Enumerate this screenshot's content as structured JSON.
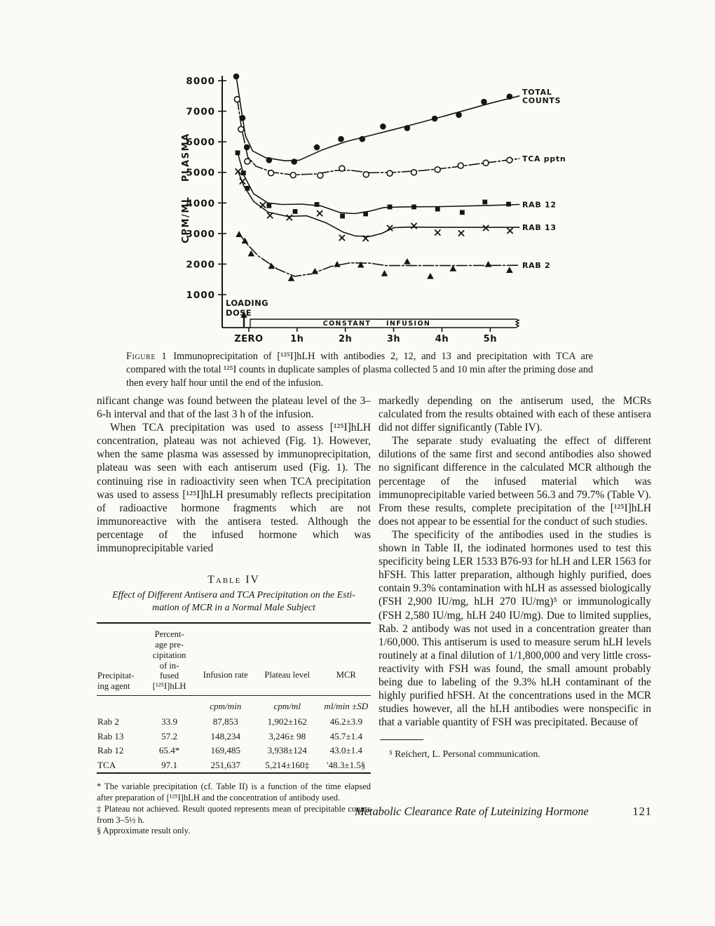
{
  "figure": {
    "caption_label": "Figure 1",
    "caption_text": "Immunoprecipitation of [¹²⁵I]hLH with antibodies 2, 12, and 13 and precipitation with TCA are compared with the total ¹²⁵I counts in duplicate samples of plasma collected 5 and 10 min after the priming dose and then every half hour until the end of the infusion."
  },
  "chart_data": {
    "type": "line",
    "ylabel": "CPM/ML PLASMA",
    "ylim": [
      1000,
      8000
    ],
    "xlim": [
      -0.55,
      5.75
    ],
    "yticks": [
      1000,
      2000,
      3000,
      4000,
      5000,
      6000,
      7000,
      8000
    ],
    "xticks": [
      {
        "t": 0,
        "label": "ZERO"
      },
      {
        "t": 1,
        "label": "1h"
      },
      {
        "t": 2,
        "label": "2h"
      },
      {
        "t": 3,
        "label": "3h"
      },
      {
        "t": 4,
        "label": "4h"
      },
      {
        "t": 5,
        "label": "5h"
      }
    ],
    "loading_dose": {
      "label_line1": "LOADING",
      "label_line2": "DOSE",
      "t": -0.1
    },
    "infusion_bar": {
      "label": "CONSTANT INFUSION",
      "t_start": 0.03,
      "t_end": 5.62
    },
    "series": [
      {
        "name": "total-counts",
        "label": "TOTAL\nCOUNTS",
        "marker": "dot",
        "line_style": "solid",
        "points": [
          [
            -0.26,
            8140
          ],
          [
            -0.13,
            6780
          ],
          [
            -0.04,
            5820
          ],
          [
            0.42,
            5400
          ],
          [
            0.94,
            5350
          ],
          [
            1.41,
            5820
          ],
          [
            1.91,
            6090
          ],
          [
            2.35,
            6090
          ],
          [
            2.78,
            6500
          ],
          [
            3.28,
            6450
          ],
          [
            3.85,
            6760
          ],
          [
            4.35,
            6880
          ],
          [
            4.87,
            7310
          ],
          [
            5.4,
            7480
          ]
        ],
        "curve": [
          [
            -0.26,
            8140
          ],
          [
            -0.17,
            7200
          ],
          [
            -0.07,
            6200
          ],
          [
            0.08,
            5700
          ],
          [
            0.35,
            5480
          ],
          [
            0.75,
            5380
          ],
          [
            1.05,
            5400
          ],
          [
            1.5,
            5720
          ],
          [
            2.0,
            6000
          ],
          [
            2.5,
            6200
          ],
          [
            3.0,
            6400
          ],
          [
            3.5,
            6610
          ],
          [
            4.0,
            6820
          ],
          [
            4.5,
            7040
          ],
          [
            5.0,
            7260
          ],
          [
            5.6,
            7500
          ]
        ]
      },
      {
        "name": "tca-pptn",
        "label": "TCA pptn",
        "marker": "circle",
        "line_style": "dashdot",
        "points": [
          [
            -0.24,
            7390
          ],
          [
            -0.16,
            6410
          ],
          [
            -0.03,
            5360
          ],
          [
            0.46,
            4980
          ],
          [
            0.92,
            4910
          ],
          [
            1.48,
            4900
          ],
          [
            1.93,
            5130
          ],
          [
            2.43,
            4930
          ],
          [
            2.92,
            4970
          ],
          [
            3.42,
            5000
          ],
          [
            3.91,
            5090
          ],
          [
            4.39,
            5220
          ],
          [
            4.91,
            5310
          ],
          [
            5.4,
            5400
          ]
        ],
        "curve": [
          [
            -0.24,
            7390
          ],
          [
            -0.15,
            6450
          ],
          [
            -0.02,
            5500
          ],
          [
            0.15,
            5200
          ],
          [
            0.5,
            5000
          ],
          [
            0.9,
            4920
          ],
          [
            1.4,
            4950
          ],
          [
            1.8,
            5060
          ],
          [
            2.1,
            5070
          ],
          [
            2.5,
            4990
          ],
          [
            3.0,
            5000
          ],
          [
            3.6,
            5060
          ],
          [
            4.2,
            5160
          ],
          [
            4.8,
            5290
          ],
          [
            5.6,
            5450
          ]
        ]
      },
      {
        "name": "rab-12",
        "label": "RAB 12",
        "marker": "square",
        "line_style": "solid",
        "points": [
          [
            -0.23,
            5640
          ],
          [
            -0.11,
            4980
          ],
          [
            -0.03,
            4480
          ],
          [
            0.42,
            3910
          ],
          [
            0.96,
            3720
          ],
          [
            1.41,
            3950
          ],
          [
            1.94,
            3570
          ],
          [
            2.42,
            3640
          ],
          [
            2.92,
            3870
          ],
          [
            3.42,
            3870
          ],
          [
            3.91,
            3800
          ],
          [
            4.42,
            3690
          ],
          [
            4.89,
            4030
          ],
          [
            5.38,
            3960
          ]
        ],
        "curve": [
          [
            -0.23,
            5640
          ],
          [
            -0.1,
            4900
          ],
          [
            0.1,
            4300
          ],
          [
            0.4,
            4000
          ],
          [
            0.7,
            3950
          ],
          [
            1.1,
            3960
          ],
          [
            1.5,
            3900
          ],
          [
            1.9,
            3680
          ],
          [
            2.2,
            3650
          ],
          [
            2.5,
            3730
          ],
          [
            2.8,
            3850
          ],
          [
            3.2,
            3870
          ],
          [
            4.0,
            3880
          ],
          [
            5.0,
            3920
          ],
          [
            5.6,
            3950
          ]
        ]
      },
      {
        "name": "rab-13",
        "label": "RAB 13",
        "marker": "x",
        "line_style": "solid",
        "points": [
          [
            -0.22,
            5030
          ],
          [
            -0.13,
            4710
          ],
          [
            0.29,
            3930
          ],
          [
            0.44,
            3590
          ],
          [
            0.84,
            3520
          ],
          [
            1.47,
            3660
          ],
          [
            1.93,
            2860
          ],
          [
            2.42,
            2840
          ],
          [
            2.92,
            3180
          ],
          [
            3.42,
            3250
          ],
          [
            3.91,
            3030
          ],
          [
            4.4,
            3010
          ],
          [
            4.91,
            3180
          ],
          [
            5.41,
            3090
          ]
        ],
        "curve": [
          [
            -0.22,
            5030
          ],
          [
            -0.1,
            4550
          ],
          [
            0.1,
            4050
          ],
          [
            0.4,
            3700
          ],
          [
            0.8,
            3560
          ],
          [
            1.2,
            3580
          ],
          [
            1.6,
            3350
          ],
          [
            1.95,
            3050
          ],
          [
            2.2,
            2920
          ],
          [
            2.5,
            2900
          ],
          [
            2.75,
            3000
          ],
          [
            3.0,
            3190
          ],
          [
            3.3,
            3210
          ],
          [
            4.0,
            3200
          ],
          [
            5.0,
            3200
          ],
          [
            5.6,
            3200
          ]
        ]
      },
      {
        "name": "rab-2",
        "label": "RAB 2",
        "marker": "triangle",
        "line_style": "dashdot",
        "points": [
          [
            -0.2,
            2970
          ],
          [
            -0.08,
            2760
          ],
          [
            0.05,
            2340
          ],
          [
            0.47,
            1930
          ],
          [
            0.88,
            1530
          ],
          [
            1.37,
            1760
          ],
          [
            1.83,
            1990
          ],
          [
            2.32,
            1970
          ],
          [
            2.81,
            1690
          ],
          [
            3.28,
            2080
          ],
          [
            3.76,
            1600
          ],
          [
            4.23,
            1850
          ],
          [
            4.96,
            1990
          ],
          [
            5.4,
            1800
          ]
        ],
        "curve": [
          [
            -0.2,
            3000
          ],
          [
            -0.05,
            2680
          ],
          [
            0.2,
            2260
          ],
          [
            0.6,
            1830
          ],
          [
            0.95,
            1600
          ],
          [
            1.3,
            1680
          ],
          [
            1.7,
            1920
          ],
          [
            2.1,
            2040
          ],
          [
            2.5,
            2030
          ],
          [
            2.85,
            1950
          ],
          [
            3.3,
            1950
          ],
          [
            4.2,
            1950
          ],
          [
            5.6,
            1960
          ]
        ]
      }
    ]
  },
  "left_column": {
    "paragraphs": [
      "nificant change was found between the plateau level of the 3–6-h interval and that of the last 3 h of the infusion.",
      "When TCA precipitation was used to assess [¹²⁵I]hLH concentration, plateau was not achieved (Fig. 1). However, when the same plasma was assessed by immunoprecipitation, plateau was seen with each antiserum used (Fig. 1). The continuing rise in radioactivity seen when TCA precipitation was used to assess [¹²⁵I]hLH presumably reflects precipitation of radioactive hormone fragments which are not immunoreactive with the antisera tested. Although the percentage of the infused hormone which was immunoprecipitable varied"
    ]
  },
  "right_column": {
    "paragraphs": [
      "markedly depending on the antiserum used, the MCRs calculated from the results obtained with each of these antisera did not differ significantly (Table IV).",
      "The separate study evaluating the effect of different dilutions of the same first and second antibodies also showed no significant difference in the calculated MCR although the percentage of the infused material which was immunoprecipitable varied between 56.3 and 79.7% (Table V). From these results, complete precipitation of the [¹²⁵I]hLH does not appear to be essential for the conduct of such studies.",
      "The specificity of the antibodies used in the studies is shown in Table II, the iodinated hormones used to test this specificity being LER 1533 B76-93 for hLH and LER 1563 for hFSH. This latter preparation, although highly purified, does contain 9.3% contamination with hLH as assessed biologically (FSH 2,900 IU/mg, hLH 270 IU/mg)⁵ or immunologically (FSH 2,580 IU/mg, hLH 240 IU/mg). Due to limited supplies, Rab. 2 antibody was not used in a concentration greater than 1/60,000. This antiserum is used to measure serum hLH levels routinely at a final dilution of 1/1,800,000 and very little cross-reactivity with FSH was found, the small amount probably being due to labeling of the 9.3% hLH contaminant of the highly purified hFSH. At the concentrations used in the MCR studies however, all the hLH antibodies were nonspecific in that a variable quantity of FSH was precipitated. Because of"
    ],
    "footnote": "⁵ Reichert, L. Personal communication."
  },
  "table": {
    "heading": "Table IV",
    "title": "Effect of Different Antisera and TCA Precipitation on the Esti-\nmation of MCR in a Normal Male Subject",
    "headers": [
      "Precipitat-\ning agent",
      "Percent-\nage pre-\ncipitation\nof in-\nfused\n[¹²⁵I]hLH",
      "Infusion rate",
      "Plateau level",
      "MCR"
    ],
    "units": [
      "",
      "",
      "cpm/min",
      "cpm/ml",
      "ml/min ±SD"
    ],
    "rows": [
      [
        "Rab 2",
        "33.9",
        "87,853",
        "1,902±162",
        "46.2±3.9"
      ],
      [
        "Rab 13",
        "57.2",
        "148,234",
        "3,246± 98",
        "45.7±1.4"
      ],
      [
        "Rab 12",
        "65.4*",
        "169,485",
        "3,938±124",
        "43.0±1.4"
      ],
      [
        "TCA",
        "97.1",
        "251,637",
        "5,214±160‡",
        "'48.3±1.5§"
      ]
    ],
    "footnotes": [
      "* The variable precipitation (cf. Table II) is a function of the time elapsed after preparation of [¹²⁵I]hLH and the concentration of antibody used.",
      "‡ Plateau not achieved. Result quoted represents mean of precipitable counts from 3–5½ h.",
      "§ Approximate result only."
    ]
  },
  "footer": {
    "title": "Metabolic Clearance Rate of Luteinizing Hormone",
    "page_number": "121"
  }
}
